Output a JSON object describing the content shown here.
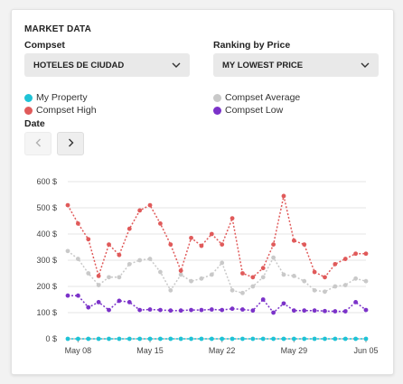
{
  "header": {
    "title": "MARKET DATA"
  },
  "compset": {
    "label": "Compset",
    "value": "HOTELES DE CIUDAD"
  },
  "ranking": {
    "label": "Ranking by Price",
    "value": "MY LOWEST PRICE"
  },
  "date": {
    "label": "Date"
  },
  "icons": {
    "prev": "chevron-left-icon",
    "next": "chevron-right-icon",
    "dropdown": "chevron-down-icon"
  },
  "chart_data": {
    "type": "line",
    "ylim": [
      0,
      600
    ],
    "y_ticks": [
      "0 $",
      "100 $",
      "200 $",
      "300 $",
      "400 $",
      "500 $",
      "600 $"
    ],
    "y_tick_values": [
      0,
      100,
      200,
      300,
      400,
      500,
      600
    ],
    "x_tick_labels": [
      "May 08",
      "May 15",
      "May 22",
      "May 29",
      "Jun 05"
    ],
    "x_tick_index": [
      1,
      8,
      15,
      22,
      29
    ],
    "x_count": 30,
    "legend_placement": "top",
    "series": [
      {
        "name": "My Property",
        "color": "#1fc3d6",
        "values": [
          0,
          0,
          0,
          0,
          0,
          0,
          0,
          0,
          0,
          0,
          0,
          0,
          0,
          0,
          0,
          0,
          0,
          0,
          0,
          0,
          0,
          0,
          0,
          0,
          0,
          0,
          0,
          0,
          0,
          0
        ]
      },
      {
        "name": "Compset Average",
        "color": "#c9c9c9",
        "values": [
          335,
          305,
          250,
          205,
          235,
          235,
          285,
          300,
          305,
          255,
          185,
          245,
          220,
          230,
          245,
          290,
          185,
          175,
          200,
          235,
          310,
          245,
          240,
          220,
          185,
          180,
          200,
          205,
          230,
          220
        ]
      },
      {
        "name": "Compset High",
        "color": "#e05a5a",
        "values": [
          510,
          440,
          380,
          240,
          360,
          320,
          420,
          490,
          510,
          440,
          360,
          260,
          385,
          355,
          400,
          360,
          460,
          250,
          235,
          270,
          360,
          545,
          375,
          360,
          255,
          235,
          285,
          305,
          325,
          325
        ]
      },
      {
        "name": "Compset Low",
        "color": "#7b32c9",
        "values": [
          165,
          165,
          120,
          140,
          110,
          145,
          140,
          110,
          112,
          110,
          108,
          108,
          110,
          110,
          112,
          110,
          115,
          112,
          108,
          150,
          100,
          135,
          108,
          108,
          108,
          106,
          105,
          105,
          140,
          110
        ]
      }
    ]
  }
}
